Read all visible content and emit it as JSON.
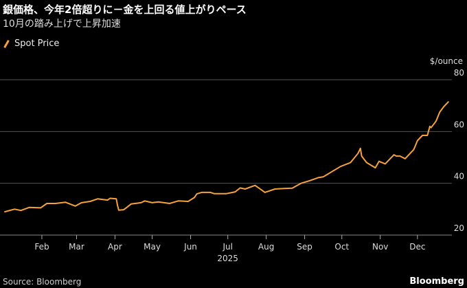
{
  "title": "銀価格、今年2倍超りに－金を上回る値上がりペース",
  "subtitle": "10月の踏み上げで上昇加速",
  "source": "Source: Bloomberg",
  "brand": "Bloomberg",
  "chart_data": {
    "type": "line",
    "ylabel": "$/ounce",
    "ylim": [
      20,
      80
    ],
    "yticks": [
      "20",
      "40",
      "60",
      "80"
    ],
    "xlim": [
      "2025-01-01",
      "2025-12-31"
    ],
    "xticks": [
      {
        "date": "2025-02-01",
        "label": "Feb"
      },
      {
        "date": "2025-03-01",
        "label": "Mar"
      },
      {
        "date": "2025-04-01",
        "label": "Apr"
      },
      {
        "date": "2025-05-01",
        "label": "May"
      },
      {
        "date": "2025-06-01",
        "label": "Jun"
      },
      {
        "date": "2025-07-01",
        "label": "Jul"
      },
      {
        "date": "2025-08-01",
        "label": "Aug"
      },
      {
        "date": "2025-09-01",
        "label": "Sep"
      },
      {
        "date": "2025-10-01",
        "label": "Oct"
      },
      {
        "date": "2025-11-01",
        "label": "Nov"
      },
      {
        "date": "2025-12-01",
        "label": "Dec"
      }
    ],
    "year_label": "2025",
    "legend_position": "top-left",
    "grid": true,
    "color": "#f7a23a",
    "series": [
      {
        "name": "Spot Price",
        "x": [
          "2025-01-02",
          "2025-01-10",
          "2025-01-15",
          "2025-01-22",
          "2025-01-31",
          "2025-02-05",
          "2025-02-12",
          "2025-02-20",
          "2025-02-28",
          "2025-03-05",
          "2025-03-12",
          "2025-03-18",
          "2025-03-26",
          "2025-03-28",
          "2025-04-02",
          "2025-04-03",
          "2025-04-04",
          "2025-04-08",
          "2025-04-10",
          "2025-04-14",
          "2025-04-22",
          "2025-04-25",
          "2025-05-01",
          "2025-05-06",
          "2025-05-15",
          "2025-05-22",
          "2025-05-30",
          "2025-06-04",
          "2025-06-06",
          "2025-06-10",
          "2025-06-17",
          "2025-06-20",
          "2025-06-30",
          "2025-07-07",
          "2025-07-11",
          "2025-07-15",
          "2025-07-23",
          "2025-07-31",
          "2025-08-08",
          "2025-08-15",
          "2025-08-22",
          "2025-08-29",
          "2025-09-05",
          "2025-09-12",
          "2025-09-16",
          "2025-09-23",
          "2025-09-30",
          "2025-10-08",
          "2025-10-14",
          "2025-10-16",
          "2025-10-17",
          "2025-10-21",
          "2025-10-28",
          "2025-10-31",
          "2025-11-05",
          "2025-11-12",
          "2025-11-14",
          "2025-11-17",
          "2025-11-21",
          "2025-11-28",
          "2025-12-01",
          "2025-12-05",
          "2025-12-09",
          "2025-12-11",
          "2025-12-12",
          "2025-12-16",
          "2025-12-19",
          "2025-12-22",
          "2025-12-26"
        ],
        "values": [
          29.0,
          30.0,
          29.5,
          30.7,
          30.5,
          32.2,
          32.2,
          32.7,
          31.2,
          32.5,
          33.0,
          34.0,
          33.5,
          34.2,
          34.0,
          31.5,
          29.6,
          29.8,
          30.5,
          32.0,
          32.5,
          33.2,
          32.5,
          32.8,
          32.2,
          33.2,
          33.0,
          34.5,
          35.9,
          36.5,
          36.5,
          36.0,
          36.0,
          36.7,
          38.2,
          37.8,
          39.2,
          36.5,
          37.8,
          38.0,
          38.1,
          40.0,
          41.0,
          42.2,
          42.5,
          44.5,
          46.5,
          48.0,
          51.5,
          53.5,
          50.5,
          48.0,
          46.0,
          48.5,
          47.5,
          51.0,
          50.5,
          50.5,
          49.5,
          53.0,
          56.5,
          58.5,
          58.5,
          62.0,
          61.5,
          64.0,
          67.5,
          69.5,
          71.5
        ]
      }
    ]
  }
}
